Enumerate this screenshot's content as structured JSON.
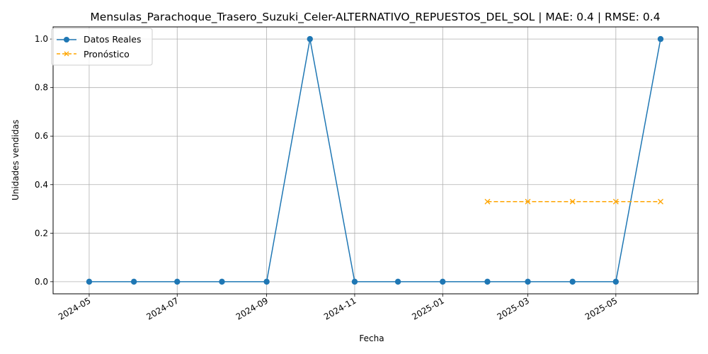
{
  "chart_data": {
    "type": "line",
    "title": "Mensulas_Parachoque_Trasero_Suzuki_Celer-ALTERNATIVO_REPUESTOS_DEL_SOL | MAE: 0.4 | RMSE: 0.4",
    "xlabel": "Fecha",
    "ylabel": "Unidades vendidas",
    "x_tick_labels": [
      "2024-05",
      "2024-07",
      "2024-09",
      "2024-11",
      "2025-01",
      "2025-03",
      "2025-05"
    ],
    "y_tick_labels": [
      "0.0",
      "0.2",
      "0.4",
      "0.6",
      "0.8",
      "1.0"
    ],
    "y_ticks": [
      0,
      0.2,
      0.4,
      0.6,
      0.8,
      1.0
    ],
    "ylim": [
      -0.05,
      1.05
    ],
    "grid": true,
    "legend_position": "top-left",
    "series": [
      {
        "name": "Datos Reales",
        "color": "#1f77b4",
        "marker": "circle",
        "line_style": "solid",
        "dates": [
          "2024-05-01",
          "2024-06-01",
          "2024-07-01",
          "2024-08-01",
          "2024-09-01",
          "2024-10-01",
          "2024-11-01",
          "2024-12-01",
          "2025-01-01",
          "2025-02-01",
          "2025-03-01",
          "2025-04-01",
          "2025-05-01",
          "2025-06-01"
        ],
        "values": [
          0,
          0,
          0,
          0,
          0,
          1,
          0,
          0,
          0,
          0,
          0,
          0,
          0,
          1
        ]
      },
      {
        "name": "Pronóstico",
        "color": "#ffa500",
        "marker": "x",
        "line_style": "dashed",
        "dates": [
          "2025-02-01",
          "2025-03-01",
          "2025-04-01",
          "2025-05-01",
          "2025-06-01"
        ],
        "values": [
          0.33,
          0.33,
          0.33,
          0.33,
          0.33
        ]
      }
    ]
  }
}
